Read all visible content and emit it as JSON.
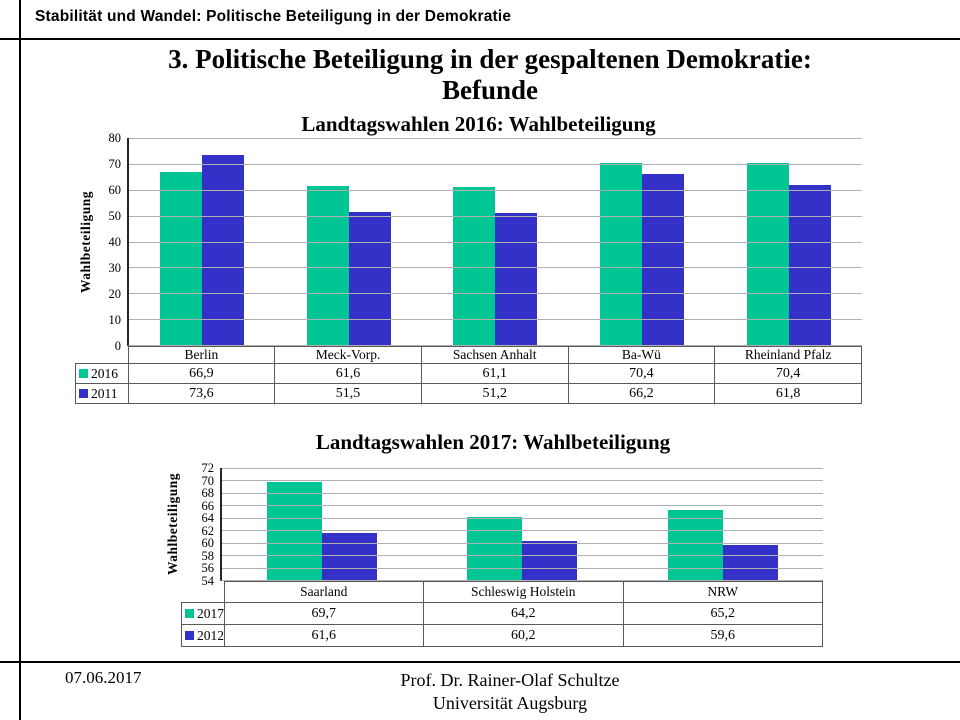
{
  "header": {
    "title": "Stabilität und Wandel: Politische Beteiligung in der Demokratie"
  },
  "slide_title": {
    "line1": "3. Politische Beteiligung in der gespaltenen Demokratie:",
    "line2": "Befunde"
  },
  "colors": {
    "series_recent": "#00c594",
    "series_previous": "#3431c8",
    "gridline": "#b0b0b0",
    "table_border": "#595959",
    "rule": "#000000"
  },
  "chart_data": [
    {
      "type": "bar",
      "title": "Landtagswahlen 2016: Wahlbeteiligung",
      "ylabel": "Wahlbeteiligung",
      "xlabel": "",
      "ylim": [
        0,
        80
      ],
      "ytick_step": 10,
      "grid": true,
      "legend_position": "table-left",
      "categories": [
        "Berlin",
        "Meck-Vorp.",
        "Sachsen Anhalt",
        "Ba-Wü",
        "Rheinland Pfalz"
      ],
      "series": [
        {
          "name": "2016",
          "color": "#00c594",
          "values": [
            66.9,
            61.6,
            61.1,
            70.4,
            70.4
          ],
          "value_labels": [
            "66,9",
            "61,6",
            "61,1",
            "70,4",
            "70,4"
          ]
        },
        {
          "name": "2011",
          "color": "#3431c8",
          "values": [
            73.6,
            51.5,
            51.2,
            66.2,
            61.8
          ],
          "value_labels": [
            "73,6",
            "51,5",
            "51,2",
            "66,2",
            "61,8"
          ]
        }
      ]
    },
    {
      "type": "bar",
      "title": "Landtagswahlen 2017: Wahlbeteiligung",
      "ylabel": "Wahlbeteiligung",
      "xlabel": "",
      "ylim": [
        54,
        72
      ],
      "ytick_step": 2,
      "grid": true,
      "legend_position": "table-left",
      "categories": [
        "Saarland",
        "Schleswig Holstein",
        "NRW"
      ],
      "series": [
        {
          "name": "2017",
          "color": "#00c594",
          "values": [
            69.7,
            64.2,
            65.2
          ],
          "value_labels": [
            "69,7",
            "64,2",
            "65,2"
          ]
        },
        {
          "name": "2012",
          "color": "#3431c8",
          "values": [
            61.6,
            60.2,
            59.6
          ],
          "value_labels": [
            "61,6",
            "60,2",
            "59,6"
          ]
        }
      ]
    }
  ],
  "footer": {
    "date": "07.06.2017",
    "author": "Prof. Dr. Rainer-Olaf  Schultze",
    "institution": "Universität  Augsburg"
  }
}
